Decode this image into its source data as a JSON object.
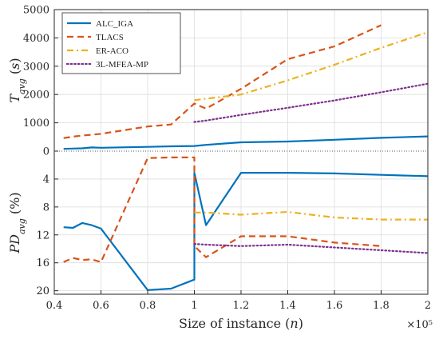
{
  "chart_data": {
    "type": "line",
    "xlabel": "Size of instance (n)",
    "x_multiplier_label": "×10⁵",
    "xlim": [
      0.4,
      2.0
    ],
    "x_ticks": [
      0.4,
      0.6,
      0.8,
      1.0,
      1.2,
      1.4,
      1.6,
      1.8,
      2.0
    ],
    "x_tick_labels": [
      "0.4",
      "0.6",
      "0.8",
      "1",
      "1.2",
      "1.4",
      "1.6",
      "1.8",
      "2"
    ],
    "grid": true,
    "legend_position": "top-left",
    "colors": {
      "ALC_IGA": "#0072BD",
      "TLACS": "#D95319",
      "ER-ACO": "#EDB120",
      "3L-MFEA-MP": "#7E2F8E"
    },
    "panels": [
      {
        "name": "time",
        "ylabel": "T_avg (s)",
        "ylim": [
          0,
          5000
        ],
        "y_ticks": [
          0,
          1000,
          2000,
          3000,
          4000,
          5000
        ],
        "y_tick_labels": [
          "0",
          "1000",
          "2000",
          "3000",
          "4000",
          "5000"
        ],
        "series": [
          {
            "name": "ALC_IGA",
            "style": "solid",
            "color": "#0072BD",
            "x": [
              0.44,
              0.48,
              0.52,
              0.56,
              0.6,
              0.8,
              0.9,
              1.0,
              1.05,
              1.2,
              1.4,
              1.6,
              1.8,
              2.0
            ],
            "y": [
              80,
              90,
              100,
              130,
              120,
              150,
              170,
              180,
              220,
              310,
              340,
              400,
              470,
              520
            ]
          },
          {
            "name": "TLACS",
            "style": "dashed",
            "color": "#D95319",
            "x": [
              0.44,
              0.48,
              0.52,
              0.56,
              0.6,
              0.8,
              0.9,
              1.0,
              1.05,
              1.2,
              1.4,
              1.6,
              1.8
            ],
            "y": [
              460,
              510,
              550,
              580,
              610,
              870,
              940,
              1680,
              1500,
              2200,
              3250,
              3700,
              4450
            ]
          },
          {
            "name": "ER-ACO",
            "style": "dashdot",
            "color": "#EDB120",
            "x": [
              1.0,
              1.05,
              1.2,
              1.4,
              1.6,
              1.8,
              2.0
            ],
            "y": [
              1800,
              1850,
              2000,
              2500,
              3050,
              3650,
              4200
            ]
          },
          {
            "name": "3L-MFEA-MP",
            "style": "dotted",
            "color": "#7E2F8E",
            "x": [
              1.0,
              1.05,
              1.2,
              1.4,
              1.6,
              1.8,
              2.0
            ],
            "y": [
              1030,
              1080,
              1280,
              1530,
              1790,
              2080,
              2380
            ]
          }
        ]
      },
      {
        "name": "deviation",
        "ylabel": "PD_avg (%)",
        "ylim": [
          0,
          20.5
        ],
        "y_reversed": true,
        "y_ticks": [
          4,
          8,
          12,
          16,
          20
        ],
        "y_tick_labels": [
          "4",
          "8",
          "12",
          "16",
          "20"
        ],
        "series": [
          {
            "name": "ALC_IGA",
            "style": "solid",
            "color": "#0072BD",
            "x": [
              0.44,
              0.48,
              0.52,
              0.56,
              0.6,
              0.8,
              0.9,
              1.0,
              1.0,
              1.05,
              1.2,
              1.4,
              1.6,
              1.8,
              2.0
            ],
            "y": [
              10.9,
              11.0,
              10.3,
              10.6,
              11.1,
              19.9,
              19.7,
              18.4,
              3.1,
              10.6,
              3.1,
              3.1,
              3.2,
              3.4,
              3.6
            ]
          },
          {
            "name": "TLACS",
            "style": "dashed",
            "color": "#D95319",
            "x": [
              0.44,
              0.48,
              0.52,
              0.56,
              0.6,
              0.8,
              0.9,
              1.0,
              1.0,
              1.05,
              1.2,
              1.4,
              1.6,
              1.8
            ],
            "y": [
              15.9,
              15.3,
              15.6,
              15.5,
              15.9,
              1.0,
              0.9,
              0.9,
              13.6,
              15.2,
              12.2,
              12.2,
              13.1,
              13.6
            ]
          },
          {
            "name": "ER-ACO",
            "style": "dashdot",
            "color": "#EDB120",
            "x": [
              1.0,
              1.05,
              1.2,
              1.4,
              1.6,
              1.8,
              2.0
            ],
            "y": [
              8.8,
              8.8,
              9.1,
              8.7,
              9.5,
              9.8,
              9.8
            ]
          },
          {
            "name": "3L-MFEA-MP",
            "style": "dotted",
            "color": "#7E2F8E",
            "x": [
              1.0,
              1.05,
              1.2,
              1.4,
              1.6,
              1.8,
              2.0
            ],
            "y": [
              13.3,
              13.4,
              13.6,
              13.4,
              13.8,
              14.2,
              14.6
            ]
          }
        ]
      }
    ],
    "legend": [
      {
        "name": "ALC_IGA",
        "label": "ALC_IGA"
      },
      {
        "name": "TLACS",
        "label": "TLACS"
      },
      {
        "name": "ER-ACO",
        "label": "ER-ACO"
      },
      {
        "name": "3L-MFEA-MP",
        "label": "3L-MFEA-MP"
      }
    ]
  }
}
